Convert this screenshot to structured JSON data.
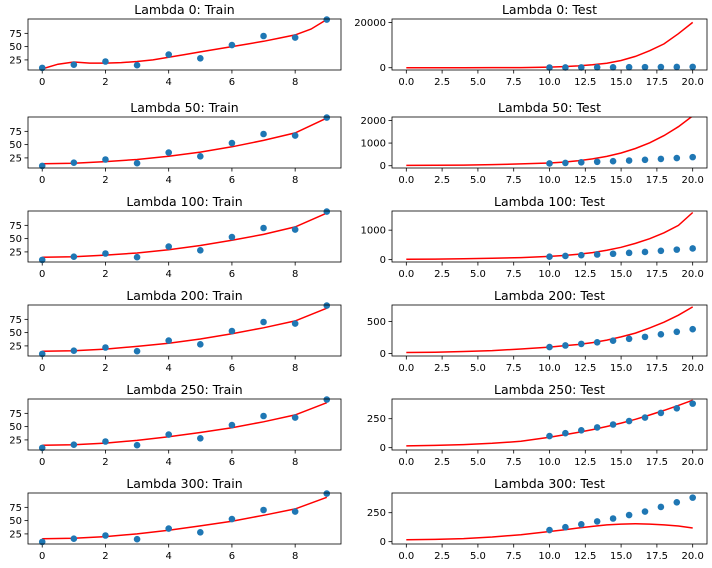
{
  "colors": {
    "points": "#1f77b4",
    "line": "#ff0000"
  },
  "chart_data": [
    {
      "type": "scatter+line",
      "title": "Lambda 0: Train",
      "xlim": [
        -0.45,
        9.45
      ],
      "ylim": [
        6,
        102
      ],
      "x": [
        0,
        1,
        2,
        3,
        4,
        5,
        6,
        7,
        8,
        9
      ],
      "points": [
        10,
        16,
        22,
        15,
        35,
        28,
        53,
        70,
        67,
        101
      ],
      "curve": {
        "x": [
          0,
          0.5,
          1,
          1.5,
          2,
          2.5,
          3,
          3.5,
          4,
          4.5,
          5,
          5.5,
          6,
          6.5,
          7,
          7.5,
          8,
          8.5,
          9
        ],
        "y": [
          8,
          17,
          21,
          19,
          19,
          20,
          22,
          25,
          30,
          35,
          40,
          45,
          50,
          55,
          60,
          66,
          72,
          83,
          101
        ]
      },
      "xticks": [
        0,
        2,
        4,
        6,
        8
      ],
      "xtick_labels": [
        "0",
        "2",
        "4",
        "6",
        "8"
      ],
      "yticks": [
        25,
        50,
        75
      ],
      "ytick_labels": [
        "25",
        "50",
        "75"
      ]
    },
    {
      "type": "scatter+line",
      "title": "Lambda 0: Test",
      "xlim": [
        -1,
        21
      ],
      "ylim": [
        -1000,
        21500
      ],
      "x": [
        10,
        11.11,
        12.22,
        13.33,
        14.44,
        15.56,
        16.67,
        17.78,
        18.89,
        20
      ],
      "points": [
        100,
        125,
        150,
        175,
        200,
        230,
        260,
        300,
        340,
        380
      ],
      "curve": {
        "x": [
          0,
          2,
          4,
          6,
          8,
          10,
          11,
          12,
          13,
          14,
          15,
          16,
          17,
          18,
          19,
          20
        ],
        "y": [
          8,
          22,
          30,
          45,
          80,
          300,
          500,
          800,
          1300,
          2000,
          3200,
          5000,
          7500,
          10500,
          15000,
          20000
        ]
      },
      "xticks": [
        0,
        2.5,
        5,
        7.5,
        10,
        12.5,
        15,
        17.5,
        20
      ],
      "xtick_labels": [
        "0.0",
        "2.5",
        "5.0",
        "7.5",
        "10.0",
        "12.5",
        "15.0",
        "17.5",
        "20.0"
      ],
      "yticks": [
        0,
        20000
      ],
      "ytick_labels": [
        "0",
        "20000"
      ]
    },
    {
      "type": "scatter+line",
      "title": "Lambda 50: Train",
      "xlim": [
        -0.45,
        9.45
      ],
      "ylim": [
        6,
        102
      ],
      "x": [
        0,
        1,
        2,
        3,
        4,
        5,
        6,
        7,
        8,
        9
      ],
      "points": [
        10,
        16,
        22,
        15,
        35,
        28,
        53,
        70,
        67,
        101
      ],
      "curve": {
        "x": [
          0,
          1,
          2,
          3,
          4,
          5,
          6,
          7,
          8,
          9
        ],
        "y": [
          14,
          15,
          18,
          22,
          28,
          36,
          46,
          58,
          72,
          100
        ]
      },
      "xticks": [
        0,
        2,
        4,
        6,
        8
      ],
      "xtick_labels": [
        "0",
        "2",
        "4",
        "6",
        "8"
      ],
      "yticks": [
        25,
        50,
        75
      ],
      "ytick_labels": [
        "25",
        "50",
        "75"
      ]
    },
    {
      "type": "scatter+line",
      "title": "Lambda 50: Test",
      "xlim": [
        -1,
        21
      ],
      "ylim": [
        -100,
        2150
      ],
      "x": [
        10,
        11.11,
        12.22,
        13.33,
        14.44,
        15.56,
        16.67,
        17.78,
        18.89,
        20
      ],
      "points": [
        100,
        125,
        150,
        175,
        200,
        230,
        260,
        300,
        340,
        380
      ],
      "curve": {
        "x": [
          0,
          2,
          4,
          6,
          8,
          10,
          11,
          12,
          13,
          14,
          15,
          16,
          17,
          18,
          19,
          20
        ],
        "y": [
          14,
          18,
          30,
          50,
          80,
          120,
          160,
          220,
          300,
          410,
          560,
          760,
          1010,
          1330,
          1720,
          2200
        ]
      },
      "xticks": [
        0,
        2.5,
        5,
        7.5,
        10,
        12.5,
        15,
        17.5,
        20
      ],
      "xtick_labels": [
        "0.0",
        "2.5",
        "5.0",
        "7.5",
        "10.0",
        "12.5",
        "15.0",
        "17.5",
        "20.0"
      ],
      "yticks": [
        0,
        1000,
        2000
      ],
      "ytick_labels": [
        "0",
        "1000",
        "2000"
      ]
    },
    {
      "type": "scatter+line",
      "title": "Lambda 100: Train",
      "xlim": [
        -0.45,
        9.45
      ],
      "ylim": [
        6,
        102
      ],
      "x": [
        0,
        1,
        2,
        3,
        4,
        5,
        6,
        7,
        8,
        9
      ],
      "points": [
        10,
        16,
        22,
        15,
        35,
        28,
        53,
        70,
        67,
        101
      ],
      "curve": {
        "x": [
          0,
          1,
          2,
          3,
          4,
          5,
          6,
          7,
          8,
          9
        ],
        "y": [
          15,
          16,
          19,
          23,
          29,
          37,
          47,
          58,
          72,
          98
        ]
      },
      "xticks": [
        0,
        2,
        4,
        6,
        8
      ],
      "xtick_labels": [
        "0",
        "2",
        "4",
        "6",
        "8"
      ],
      "yticks": [
        25,
        50,
        75
      ],
      "ytick_labels": [
        "25",
        "50",
        "75"
      ]
    },
    {
      "type": "scatter+line",
      "title": "Lambda 100: Test",
      "xlim": [
        -1,
        21
      ],
      "ylim": [
        -80,
        1650
      ],
      "x": [
        10,
        11.11,
        12.22,
        13.33,
        14.44,
        15.56,
        16.67,
        17.78,
        18.89,
        20
      ],
      "points": [
        100,
        125,
        150,
        175,
        200,
        230,
        260,
        300,
        340,
        380
      ],
      "curve": {
        "x": [
          0,
          2,
          4,
          6,
          8,
          10,
          11,
          12,
          13,
          14,
          15,
          16,
          17,
          18,
          19,
          20
        ],
        "y": [
          15,
          18,
          28,
          45,
          70,
          110,
          140,
          185,
          240,
          320,
          420,
          550,
          710,
          910,
          1160,
          1600
        ]
      },
      "xticks": [
        0,
        2.5,
        5,
        7.5,
        10,
        12.5,
        15,
        17.5,
        20
      ],
      "xtick_labels": [
        "0.0",
        "2.5",
        "5.0",
        "7.5",
        "10.0",
        "12.5",
        "15.0",
        "17.5",
        "20.0"
      ],
      "yticks": [
        0,
        1000
      ],
      "ytick_labels": [
        "0",
        "1000"
      ]
    },
    {
      "type": "scatter+line",
      "title": "Lambda 200: Train",
      "xlim": [
        -0.45,
        9.45
      ],
      "ylim": [
        6,
        102
      ],
      "x": [
        0,
        1,
        2,
        3,
        4,
        5,
        6,
        7,
        8,
        9
      ],
      "points": [
        10,
        16,
        22,
        15,
        35,
        28,
        53,
        70,
        67,
        101
      ],
      "curve": {
        "x": [
          0,
          1,
          2,
          3,
          4,
          5,
          6,
          7,
          8,
          9
        ],
        "y": [
          15,
          16,
          19,
          24,
          30,
          38,
          48,
          59,
          72,
          96
        ]
      },
      "xticks": [
        0,
        2,
        4,
        6,
        8
      ],
      "xtick_labels": [
        "0",
        "2",
        "4",
        "6",
        "8"
      ],
      "yticks": [
        25,
        50,
        75
      ],
      "ytick_labels": [
        "25",
        "50",
        "75"
      ]
    },
    {
      "type": "scatter+line",
      "title": "Lambda 200: Test",
      "xlim": [
        -1,
        21
      ],
      "ylim": [
        -40,
        760
      ],
      "x": [
        10,
        11.11,
        12.22,
        13.33,
        14.44,
        15.56,
        16.67,
        17.78,
        18.89,
        20
      ],
      "points": [
        100,
        125,
        150,
        175,
        200,
        230,
        260,
        300,
        340,
        380
      ],
      "curve": {
        "x": [
          0,
          2,
          4,
          6,
          8,
          10,
          11,
          12,
          13,
          14,
          15,
          16,
          17,
          18,
          19,
          20
        ],
        "y": [
          15,
          20,
          30,
          45,
          70,
          100,
          120,
          140,
          170,
          210,
          260,
          320,
          400,
          490,
          600,
          730
        ]
      },
      "xticks": [
        0,
        2.5,
        5,
        7.5,
        10,
        12.5,
        15,
        17.5,
        20
      ],
      "xtick_labels": [
        "0.0",
        "2.5",
        "5.0",
        "7.5",
        "10.0",
        "12.5",
        "15.0",
        "17.5",
        "20.0"
      ],
      "yticks": [
        0,
        500
      ],
      "ytick_labels": [
        "0",
        "500"
      ]
    },
    {
      "type": "scatter+line",
      "title": "Lambda 250: Train",
      "xlim": [
        -0.45,
        9.45
      ],
      "ylim": [
        6,
        102
      ],
      "x": [
        0,
        1,
        2,
        3,
        4,
        5,
        6,
        7,
        8,
        9
      ],
      "points": [
        10,
        16,
        22,
        15,
        35,
        28,
        53,
        70,
        67,
        101
      ],
      "curve": {
        "x": [
          0,
          1,
          2,
          3,
          4,
          5,
          6,
          7,
          8,
          9
        ],
        "y": [
          15,
          16,
          19,
          24,
          31,
          39,
          48,
          59,
          72,
          95
        ]
      },
      "xticks": [
        0,
        2,
        4,
        6,
        8
      ],
      "xtick_labels": [
        "0",
        "2",
        "4",
        "6",
        "8"
      ],
      "yticks": [
        25,
        50,
        75
      ],
      "ytick_labels": [
        "25",
        "50",
        "75"
      ]
    },
    {
      "type": "scatter+line",
      "title": "Lambda 250: Test",
      "xlim": [
        -1,
        21
      ],
      "ylim": [
        -20,
        420
      ],
      "x": [
        10,
        11.11,
        12.22,
        13.33,
        14.44,
        15.56,
        16.67,
        17.78,
        18.89,
        20
      ],
      "points": [
        100,
        125,
        150,
        175,
        200,
        230,
        260,
        300,
        340,
        380
      ],
      "curve": {
        "x": [
          0,
          2,
          4,
          6,
          8,
          10,
          11,
          12,
          13,
          14,
          15,
          16,
          17,
          18,
          19,
          20
        ],
        "y": [
          15,
          20,
          27,
          38,
          55,
          90,
          110,
          132,
          156,
          183,
          212,
          245,
          282,
          322,
          365,
          410
        ]
      },
      "xticks": [
        0,
        2.5,
        5,
        7.5,
        10,
        12.5,
        15,
        17.5,
        20
      ],
      "xtick_labels": [
        "0.0",
        "2.5",
        "5.0",
        "7.5",
        "10.0",
        "12.5",
        "15.0",
        "17.5",
        "20.0"
      ],
      "yticks": [
        0,
        250
      ],
      "ytick_labels": [
        "0",
        "250"
      ]
    },
    {
      "type": "scatter+line",
      "title": "Lambda 300: Train",
      "xlim": [
        -0.45,
        9.45
      ],
      "ylim": [
        6,
        102
      ],
      "x": [
        0,
        1,
        2,
        3,
        4,
        5,
        6,
        7,
        8,
        9
      ],
      "points": [
        10,
        16,
        22,
        15,
        35,
        28,
        53,
        70,
        67,
        101
      ],
      "curve": {
        "x": [
          0,
          1,
          2,
          3,
          4,
          5,
          6,
          7,
          8,
          9
        ],
        "y": [
          16,
          17,
          20,
          25,
          32,
          40,
          49,
          60,
          72,
          94
        ]
      },
      "xticks": [
        0,
        2,
        4,
        6,
        8
      ],
      "xtick_labels": [
        "0",
        "2",
        "4",
        "6",
        "8"
      ],
      "yticks": [
        25,
        50,
        75
      ],
      "ytick_labels": [
        "25",
        "50",
        "75"
      ]
    },
    {
      "type": "scatter+line",
      "title": "Lambda 300: Test",
      "xlim": [
        -1,
        21
      ],
      "ylim": [
        -20,
        420
      ],
      "x": [
        10,
        11.11,
        12.22,
        13.33,
        14.44,
        15.56,
        16.67,
        17.78,
        18.89,
        20
      ],
      "points": [
        100,
        125,
        150,
        175,
        200,
        230,
        260,
        300,
        340,
        380
      ],
      "curve": {
        "x": [
          0,
          2,
          4,
          6,
          8,
          10,
          11,
          12,
          13,
          14,
          15,
          16,
          17,
          18,
          19,
          20
        ],
        "y": [
          16,
          20,
          27,
          40,
          60,
          88,
          102,
          118,
          132,
          145,
          152,
          155,
          152,
          145,
          135,
          118
        ]
      },
      "xticks": [
        0,
        2.5,
        5,
        7.5,
        10,
        12.5,
        15,
        17.5,
        20
      ],
      "xtick_labels": [
        "0.0",
        "2.5",
        "5.0",
        "7.5",
        "10.0",
        "12.5",
        "15.0",
        "17.5",
        "20.0"
      ],
      "yticks": [
        0,
        250
      ],
      "ytick_labels": [
        "0",
        "250"
      ]
    }
  ]
}
